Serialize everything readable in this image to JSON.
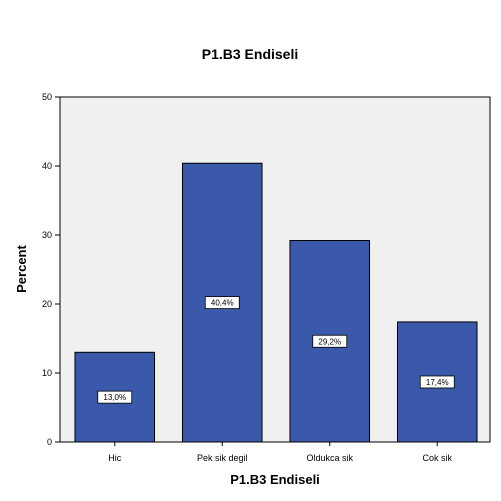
{
  "colors": {
    "bar_fill": "#3b59ab",
    "bar_stroke": "#000000",
    "plot_background": "#f0f0f0",
    "label_box_fill": "#ffffff"
  },
  "chart_data": {
    "type": "bar",
    "title": "P1.B3 Endiseli",
    "xlabel": "P1.B3 Endiseli",
    "ylabel": "Percent",
    "categories": [
      "Hic",
      "Pek sik degil",
      "Oldukca sik",
      "Cok sik"
    ],
    "values": [
      13.0,
      40.4,
      29.2,
      17.4
    ],
    "data_labels": [
      "13,0%",
      "40,4%",
      "29,2%",
      "17,4%"
    ],
    "ylim": [
      0,
      50
    ],
    "yticks": [
      0,
      10,
      20,
      30,
      40,
      50
    ],
    "grid": false,
    "legend": "none"
  }
}
